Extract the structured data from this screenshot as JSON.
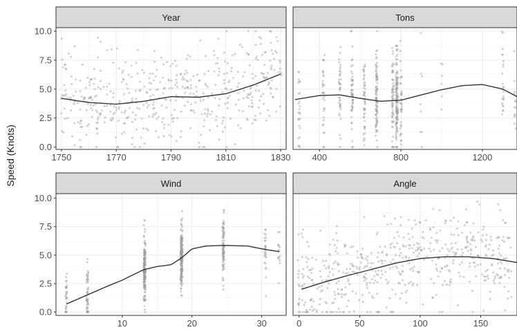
{
  "chart_data": {
    "type": "scatter",
    "ylabel": "Speed (Knots)",
    "grid": true,
    "legend": "none",
    "colors": {
      "points": "#9a9a9a",
      "smooth": "#333333",
      "strip": "#d9d9d9",
      "panel_border": "#333333",
      "grid": "#ebebeb"
    },
    "panels": [
      {
        "title": "Year",
        "xlim": [
          1748,
          1832
        ],
        "ylim": [
          -0.2,
          10.3
        ],
        "xticks": [
          1750,
          1770,
          1790,
          1810,
          1830
        ],
        "yticks": [
          0.0,
          2.5,
          5.0,
          7.5,
          10.0
        ],
        "ytick_labels": [
          "0.0",
          "2.5",
          "5.0",
          "7.5",
          "10.0"
        ],
        "smooth": {
          "x": [
            1750,
            1760,
            1770,
            1780,
            1790,
            1800,
            1810,
            1820,
            1830
          ],
          "y": [
            4.2,
            3.85,
            3.7,
            3.95,
            4.35,
            4.3,
            4.6,
            5.35,
            6.3
          ]
        },
        "points_seed": 11,
        "points_n": 520,
        "x_dist": "uniform",
        "y_mean": [
          4.2,
          3.85,
          3.7,
          3.95,
          4.35,
          4.3,
          4.6,
          5.35,
          6.3
        ],
        "y_sd": 2.1
      },
      {
        "title": "Tons",
        "xlim": [
          270,
          1370
        ],
        "ylim": [
          -0.2,
          10.3
        ],
        "xticks": [
          400,
          800,
          1200
        ],
        "yticks": [
          0.0,
          2.5,
          5.0,
          7.5,
          10.0
        ],
        "smooth": {
          "x": [
            280,
            400,
            500,
            600,
            700,
            800,
            900,
            1000,
            1100,
            1200,
            1300,
            1370
          ],
          "y": [
            4.1,
            4.45,
            4.5,
            4.2,
            3.95,
            4.05,
            4.5,
            4.95,
            5.3,
            5.4,
            5.0,
            4.35
          ]
        },
        "points_seed": 23,
        "points_n": 560,
        "x_dist": "clusters",
        "x_clusters": [
          [
            300,
            0.03
          ],
          [
            420,
            0.04
          ],
          [
            500,
            0.08
          ],
          [
            560,
            0.1
          ],
          [
            620,
            0.1
          ],
          [
            680,
            0.16
          ],
          [
            760,
            0.1
          ],
          [
            780,
            0.24
          ],
          [
            800,
            0.06
          ],
          [
            900,
            0.02
          ],
          [
            1000,
            0.01
          ],
          [
            1300,
            0.04
          ],
          [
            1360,
            0.02
          ]
        ],
        "y_sd": 2.1
      },
      {
        "title": "Wind",
        "xlim": [
          0.5,
          33.5
        ],
        "ylim": [
          -0.3,
          10.4
        ],
        "xticks": [
          10,
          20,
          30
        ],
        "yticks": [
          0.0,
          2.5,
          5.0,
          7.5,
          10.0
        ],
        "ytick_labels": [
          "0.0",
          "2.5",
          "5.0",
          "7.5",
          "10.0"
        ],
        "smooth": {
          "x": [
            2,
            5,
            8,
            10,
            13,
            15,
            17,
            18.5,
            20,
            22,
            24.5,
            28,
            30,
            32.5
          ],
          "y": [
            0.7,
            1.5,
            2.3,
            2.8,
            3.7,
            4.0,
            4.15,
            4.75,
            5.55,
            5.8,
            5.85,
            5.8,
            5.55,
            5.3
          ]
        },
        "points_seed": 37,
        "points_n": 560,
        "x_dist": "clusters",
        "x_clusters": [
          [
            2,
            0.04
          ],
          [
            5,
            0.09
          ],
          [
            13.2,
            0.28
          ],
          [
            18.5,
            0.33
          ],
          [
            24.5,
            0.18
          ],
          [
            30.5,
            0.05
          ],
          [
            32.5,
            0.03
          ]
        ],
        "y_sd": 1.4
      },
      {
        "title": "Angle",
        "xlim": [
          -5,
          180
        ],
        "ylim": [
          -0.3,
          10.4
        ],
        "xticks": [
          0,
          50,
          100,
          150
        ],
        "yticks": [
          0.0,
          2.5,
          5.0,
          7.5,
          10.0
        ],
        "smooth": {
          "x": [
            2,
            20,
            40,
            60,
            80,
            100,
            120,
            140,
            160,
            180
          ],
          "y": [
            2.0,
            2.6,
            3.2,
            3.75,
            4.3,
            4.7,
            4.85,
            4.85,
            4.7,
            4.35
          ]
        },
        "points_seed": 53,
        "points_n": 560,
        "x_dist": "uniform",
        "y_mean": [
          2.0,
          2.6,
          3.2,
          3.75,
          4.3,
          4.7,
          4.85,
          4.85,
          4.7,
          4.35
        ],
        "y_sd": 2.0
      }
    ]
  }
}
